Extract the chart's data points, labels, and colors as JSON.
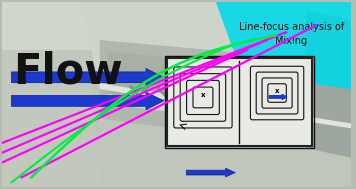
{
  "figsize": [
    3.56,
    1.89
  ],
  "dpi": 100,
  "flow_text": "Flow",
  "flow_text_color": "#111111",
  "annotation_text": "Line-focus analysis of\nMixing",
  "annotation_bg": "#00d8e8",
  "blue_arrow_color": "#1a3bcc",
  "magenta_color": "#ff00ff",
  "green_color": "#00ee44",
  "bg_top_left": "#c8cec0",
  "bg_main": "#b5bdb0",
  "chip_top": "#d0d5cc",
  "chip_side": "#a8b0a4",
  "channel_color": "#98a090",
  "groove_color": "#888f82",
  "right_edge": "#c8cec4",
  "inset_bg": "#e8ebe4"
}
